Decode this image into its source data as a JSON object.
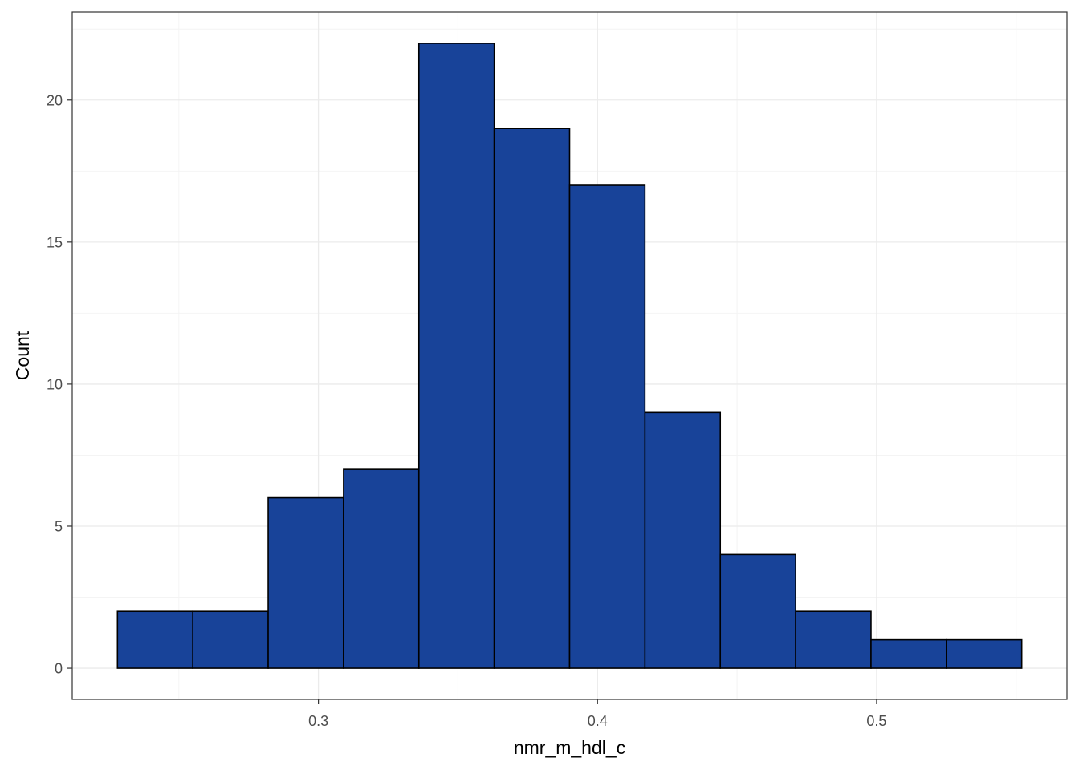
{
  "chart_data": {
    "type": "histogram",
    "title": "",
    "xlabel": "nmr_m_hdl_c",
    "ylabel": "Count",
    "bins": [
      {
        "x0": 0.228,
        "x1": 0.255,
        "count": 2
      },
      {
        "x0": 0.255,
        "x1": 0.282,
        "count": 2
      },
      {
        "x0": 0.282,
        "x1": 0.309,
        "count": 6
      },
      {
        "x0": 0.309,
        "x1": 0.336,
        "count": 7
      },
      {
        "x0": 0.336,
        "x1": 0.363,
        "count": 22
      },
      {
        "x0": 0.363,
        "x1": 0.39,
        "count": 19
      },
      {
        "x0": 0.39,
        "x1": 0.417,
        "count": 17
      },
      {
        "x0": 0.417,
        "x1": 0.444,
        "count": 9
      },
      {
        "x0": 0.444,
        "x1": 0.471,
        "count": 4
      },
      {
        "x0": 0.471,
        "x1": 0.498,
        "count": 2
      },
      {
        "x0": 0.498,
        "x1": 0.525,
        "count": 1
      },
      {
        "x0": 0.525,
        "x1": 0.552,
        "count": 1
      }
    ],
    "xlim": [
      0.2118,
      0.5682
    ],
    "ylim": [
      -1.1,
      23.1
    ],
    "x_ticks": [
      0.3,
      0.4,
      0.5
    ],
    "x_tick_labels": [
      "0.3",
      "0.4",
      "0.5"
    ],
    "y_ticks": [
      0,
      5,
      10,
      15,
      20
    ],
    "y_tick_labels": [
      "0",
      "5",
      "10",
      "15",
      "20"
    ],
    "grid": true,
    "legend": "none",
    "colors": {
      "bar_fill": "#184399",
      "bar_stroke": "#000000",
      "grid_major": "#ebebeb",
      "grid_minor": "#f4f4f4",
      "panel_border": "#333333",
      "tick_text": "#4d4d4d"
    }
  }
}
